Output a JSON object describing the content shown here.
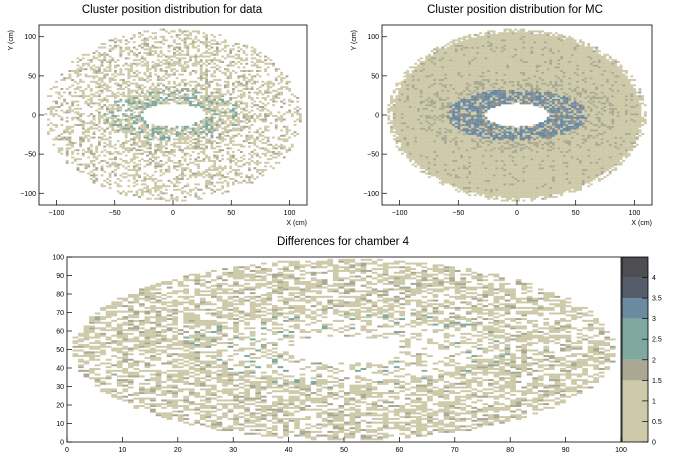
{
  "chart_data": [
    {
      "type": "heatmap",
      "title": "Cluster position distribution for data",
      "xlabel": "X (cm)",
      "ylabel": "Y (cm)",
      "xlim": [
        -115,
        115
      ],
      "ylim": [
        -115,
        115
      ],
      "xticks": [
        -100,
        -50,
        0,
        50,
        100
      ],
      "yticks": [
        -100,
        -50,
        0,
        50,
        100
      ],
      "grid": false,
      "distribution": {
        "shape": "annulus",
        "center": [
          0,
          0
        ],
        "inner_hole": {
          "x_half_width": 27,
          "y_half_width": 15
        },
        "outer_radius": 110,
        "fill": "sparse",
        "dense_ring_near_hole": true
      }
    },
    {
      "type": "heatmap",
      "title": "Cluster position distribution for MC",
      "xlabel": "X (cm)",
      "ylabel": "Y (cm)",
      "xlim": [
        -115,
        115
      ],
      "ylim": [
        -115,
        115
      ],
      "xticks": [
        -100,
        -50,
        0,
        50,
        100
      ],
      "yticks": [
        -100,
        -50,
        0,
        50,
        100
      ],
      "grid": false,
      "distribution": {
        "shape": "annulus",
        "center": [
          0,
          0
        ],
        "inner_hole": {
          "x_half_width": 27,
          "y_half_width": 15
        },
        "outer_radius": 110,
        "fill": "dense",
        "dense_ring_near_hole": true
      }
    },
    {
      "type": "heatmap",
      "title": "Differences for chamber 4",
      "xlabel": "",
      "ylabel": "",
      "xlim": [
        0,
        100
      ],
      "ylim": [
        0,
        100
      ],
      "xticks": [
        0,
        10,
        20,
        30,
        40,
        50,
        60,
        70,
        80,
        90,
        100
      ],
      "yticks": [
        0,
        10,
        20,
        30,
        40,
        50,
        60,
        70,
        80,
        90,
        100
      ],
      "grid": false,
      "distribution": {
        "shape": "annulus",
        "center": [
          50,
          50
        ],
        "inner_hole": {
          "x_half_width": 10,
          "y_half_width": 7
        },
        "outer": {
          "x_half_width": 49,
          "y_half_width": 49
        },
        "fill": "medium"
      },
      "colorbar": {
        "min": 0,
        "max": 4.5,
        "ticks": [
          0,
          0.5,
          1,
          1.5,
          2,
          2.5,
          3,
          3.5,
          4
        ],
        "bands": [
          {
            "from": 0,
            "to": 1.5,
            "color": "#cdc9a9"
          },
          {
            "from": 1.5,
            "to": 2.0,
            "color": "#a9a893"
          },
          {
            "from": 2.0,
            "to": 3.0,
            "color": "#7fa89e"
          },
          {
            "from": 3.0,
            "to": 3.5,
            "color": "#6a8aa0"
          },
          {
            "from": 3.5,
            "to": 4.0,
            "color": "#565c6a"
          },
          {
            "from": 4.0,
            "to": 4.5,
            "color": "#4e4e52"
          }
        ]
      }
    }
  ],
  "colors": {
    "base_bin": "#cdc9a9",
    "mid_bin": "#a9a893",
    "dense_gray": "#8e8f8f",
    "teal_bin": "#7fa89e",
    "blue_bin": "#5f8aa8"
  }
}
